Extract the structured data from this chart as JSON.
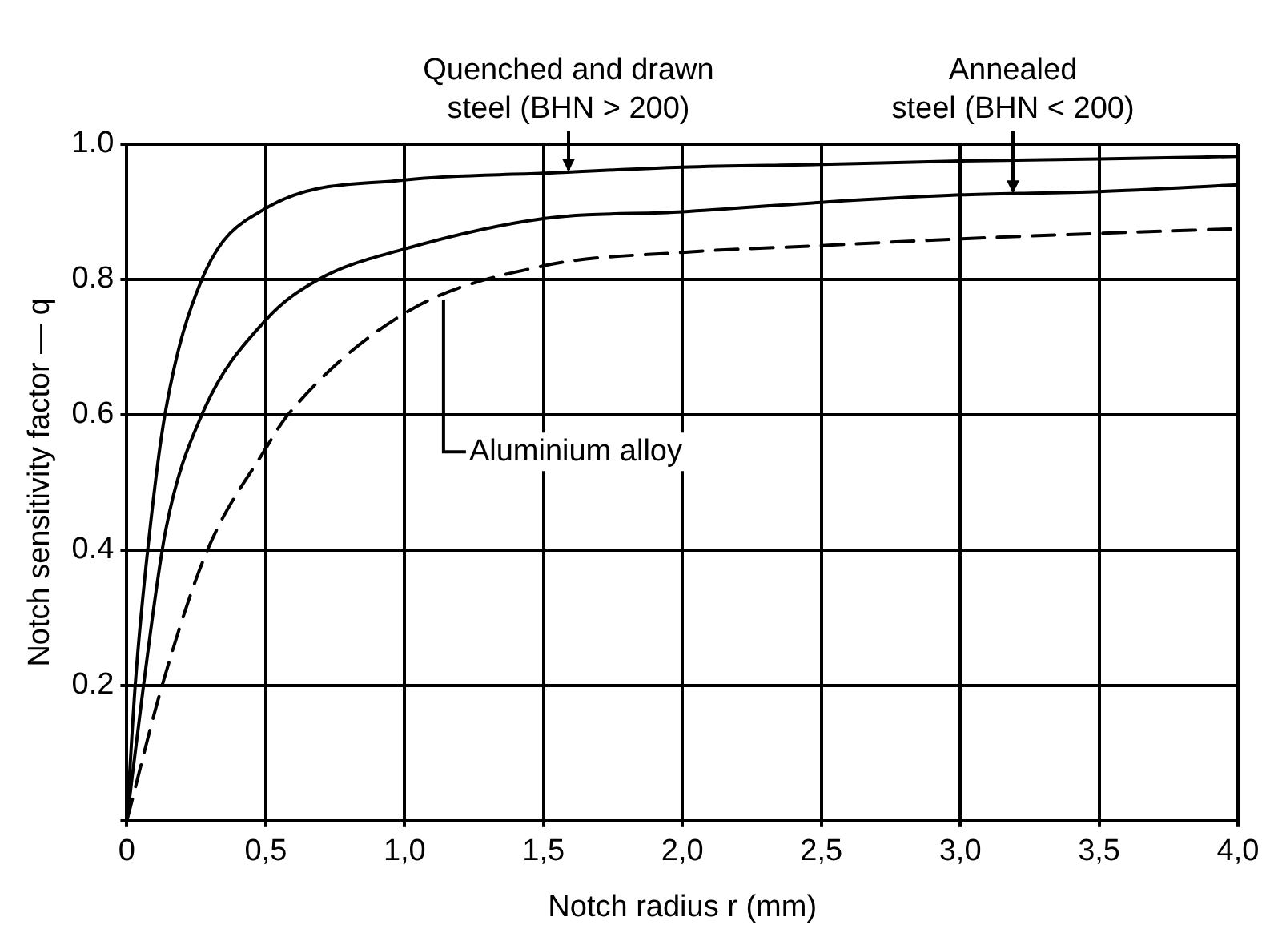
{
  "chart_data": {
    "type": "line",
    "xlabel": "Notch radius r (mm)",
    "ylabel": "Notch sensitivity factor — q",
    "xlim": [
      0,
      4
    ],
    "ylim": [
      0,
      1
    ],
    "xticks": [
      0,
      {
        "value": 0.5,
        "label": "0,5"
      },
      {
        "value": 1,
        "label": "1,0"
      },
      {
        "value": 1.5,
        "label": "1,5"
      },
      {
        "value": 2,
        "label": "2,0"
      },
      {
        "value": 2.5,
        "label": "2,5"
      },
      {
        "value": 3,
        "label": "3,0"
      },
      {
        "value": 3.5,
        "label": "3,5"
      },
      {
        "value": 4,
        "label": "4,0"
      }
    ],
    "yticks": [
      {
        "value": 0,
        "label": null
      },
      0.2,
      0.4,
      0.6,
      {
        "value": 0.8,
        "label": "0.8"
      },
      {
        "value": 1,
        "label": "1.0"
      }
    ],
    "grid": true,
    "marker": "none",
    "series": [
      {
        "color": "#000000",
        "line_style": "solid",
        "x": [
          0,
          0.03,
          0.075,
          0.137,
          0.27,
          0.5,
          1,
          1.5,
          2,
          2.5,
          3,
          3.5,
          4
        ],
        "values": [
          0,
          0.2,
          0.4,
          0.6,
          0.8,
          0.905,
          0.947,
          0.957,
          0.966,
          0.97,
          0.975,
          0.978,
          0.982
        ]
      },
      {
        "color": "#000000",
        "line_style": "solid",
        "x": [
          0,
          0.06,
          0.14,
          0.27,
          0.5,
          0.69,
          1,
          1.5,
          2,
          2.5,
          3,
          3.5,
          4
        ],
        "values": [
          0,
          0.2,
          0.43,
          0.6,
          0.74,
          0.8,
          0.845,
          0.89,
          0.9,
          0.914,
          0.925,
          0.93,
          0.94
        ]
      },
      {
        "color": "#000000",
        "line_style": "dashed",
        "x": [
          0,
          0.127,
          0.29,
          0.5,
          0.58,
          1,
          1.5,
          2,
          2.5,
          3,
          3.5,
          4
        ],
        "values": [
          0,
          0.2,
          0.4,
          0.55,
          0.6,
          0.75,
          0.82,
          0.84,
          0.85,
          0.86,
          0.868,
          0.875
        ]
      }
    ],
    "annotations": [
      {
        "text": "Quenched and drawn\nsteel (BHN > 200)",
        "x": 1.59,
        "y": 0.957
      },
      {
        "text": "Annealed\nsteel (BHN < 200)",
        "x": 3.19,
        "y": 0.925
      },
      {
        "text": "Aluminium alloy",
        "x": 1.14,
        "y": 0.77
      }
    ]
  }
}
